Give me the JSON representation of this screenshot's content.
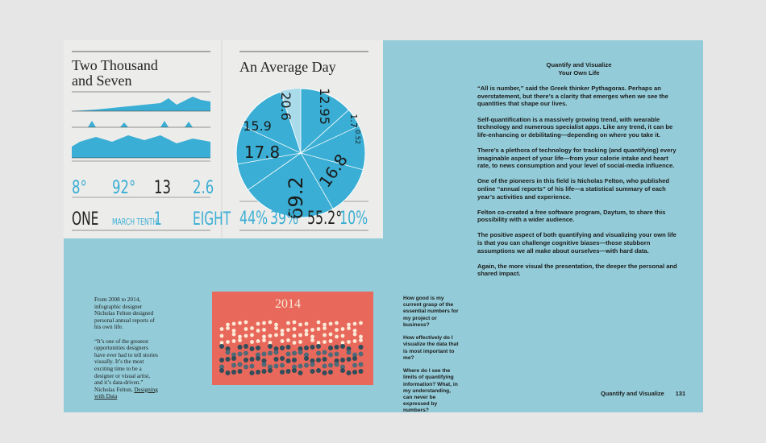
{
  "infographic": {
    "left_title": "Two Thousand and Seven",
    "right_title": "An Average Day",
    "stats_top": [
      "8°",
      "92°",
      "13",
      "2.6"
    ],
    "stats_words": [
      "ONE",
      "MARCH TENTH",
      "1",
      "EIGHT"
    ],
    "pie_labels": [
      "20.6",
      "12.95",
      "1.7",
      "0.52",
      "16.8",
      "69.2",
      "17.8",
      "15.9"
    ],
    "stats_right": [
      "44%",
      "39%",
      "55.2°",
      "10%"
    ]
  },
  "thumbnail": {
    "year": "2014"
  },
  "article": {
    "heading": [
      "Quantify and Visualize",
      "Your Own Life"
    ],
    "paragraphs": [
      "“All is number,” said the Greek thinker Pythagoras. Perhaps an overstatement, but there’s a clarity that emerges when we see the quantities that shape our lives.",
      "Self-quantification is a massively growing trend, with wearable technology and numerous specialist apps. Like any trend, it can be life-enhancing or debilitating—depending on where you take it.",
      "There’s a plethora of technology for tracking (and quantifying) every imaginable aspect of your life—from your calorie intake and heart rate, to news consumption and your level of social-media influence.",
      "One of the pioneers in this field is Nicholas Felton, who published online “annual reports” of his life—a statistical summary of each year’s activities and experience.",
      "Felton co-created a free software program, Daytum, to share this possibility with a wider audience.",
      "The positive aspect of both quantifying and visualizing your own life is that you can challenge cognitive biases—those stubborn assumptions we all make about ourselves—with hard data.",
      "Again, the more visual the presentation, the deeper the personal and shared impact."
    ]
  },
  "caption": {
    "intro": "From 2008 to 2014, infographic designer Nicholas Felton designed personal annual reports of his own life.",
    "quote": "“It’s one of the greatest opportunities designers have ever had to tell stories visually. It’s the most exciting time to be a designer or visual artist, and it’s data-driven.” Nicholas Felton, ",
    "source_link": "Designing with Data"
  },
  "questions": [
    "How good is my current grasp of the essential numbers for my project or business?",
    "How effectively do I visualize the data that is most important to me?",
    "Where do I see the limits of quantifying information? What, in my understanding, can never be expressed by numbers?"
  ],
  "footer": {
    "section": "Quantify and Visualize",
    "page": "131"
  }
}
